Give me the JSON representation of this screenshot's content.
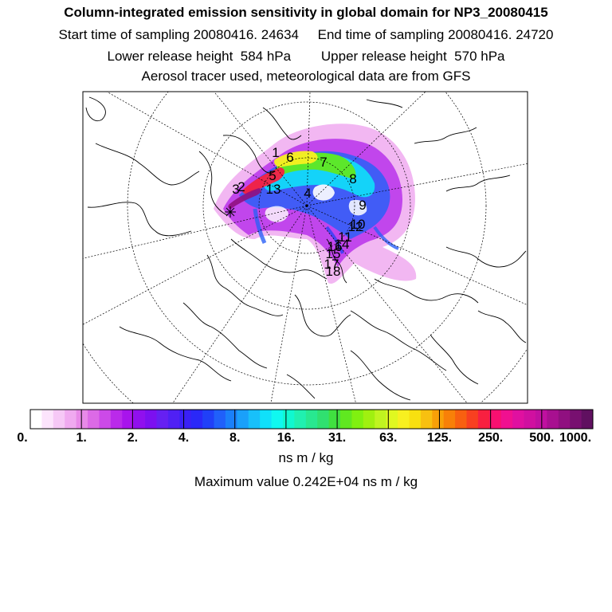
{
  "header": {
    "title": "Column-integrated emission sensitivity in global domain for NP3_20080415",
    "start_label": "Start time of sampling 20080416. 24634",
    "end_label": "End time of sampling 20080416. 24720",
    "lower_label": "Lower release height  584 hPa",
    "upper_label": "Upper release height  570 hPa",
    "aerosol_line": "Aerosol tracer used, meteorological data are from GFS"
  },
  "legend": {
    "colors": [
      "#ffffff",
      "#fce4fc",
      "#f6c8f6",
      "#f0aaf0",
      "#e88ae8",
      "#dc6ae6",
      "#cc4ae8",
      "#ba2aea",
      "#a814ec",
      "#9010ee",
      "#7c10f0",
      "#6620f2",
      "#5020f4",
      "#3a20f6",
      "#2a28f8",
      "#2040f8",
      "#2060fa",
      "#1a80fa",
      "#1aa0fa",
      "#18c0fa",
      "#10e0fa",
      "#10f8f0",
      "#10f8d0",
      "#20f0b0",
      "#28e890",
      "#30e070",
      "#40e040",
      "#60e820",
      "#80f010",
      "#a0f010",
      "#c0f420",
      "#e0f820",
      "#f8f020",
      "#f8e010",
      "#f8c010",
      "#f8a008",
      "#f88008",
      "#f86010",
      "#f84020",
      "#f82040",
      "#f81070",
      "#f01090",
      "#e010a0",
      "#d010a0",
      "#c010a0",
      "#a81090",
      "#901080",
      "#781070",
      "#601060"
    ],
    "tick_labels": [
      "0.",
      "1.",
      "2.",
      "4.",
      "8.",
      "16.",
      "31.",
      "63.",
      "125.",
      "250.",
      "500.",
      "1000."
    ],
    "units": "ns m / kg",
    "maximum_text": "Maximum value  0.242E+04 ns m / kg"
  },
  "map": {
    "projection": "polar stereographic",
    "markers": [
      {
        "label": "1"
      },
      {
        "label": "2"
      },
      {
        "label": "3"
      },
      {
        "label": "4"
      },
      {
        "label": "5"
      },
      {
        "label": "6"
      },
      {
        "label": "7"
      },
      {
        "label": "8"
      },
      {
        "label": "9"
      },
      {
        "label": "10"
      },
      {
        "label": "11"
      },
      {
        "label": "12"
      },
      {
        "label": "13"
      },
      {
        "label": "14"
      },
      {
        "label": "15"
      },
      {
        "label": "16"
      },
      {
        "label": "17"
      },
      {
        "label": "18"
      }
    ]
  }
}
